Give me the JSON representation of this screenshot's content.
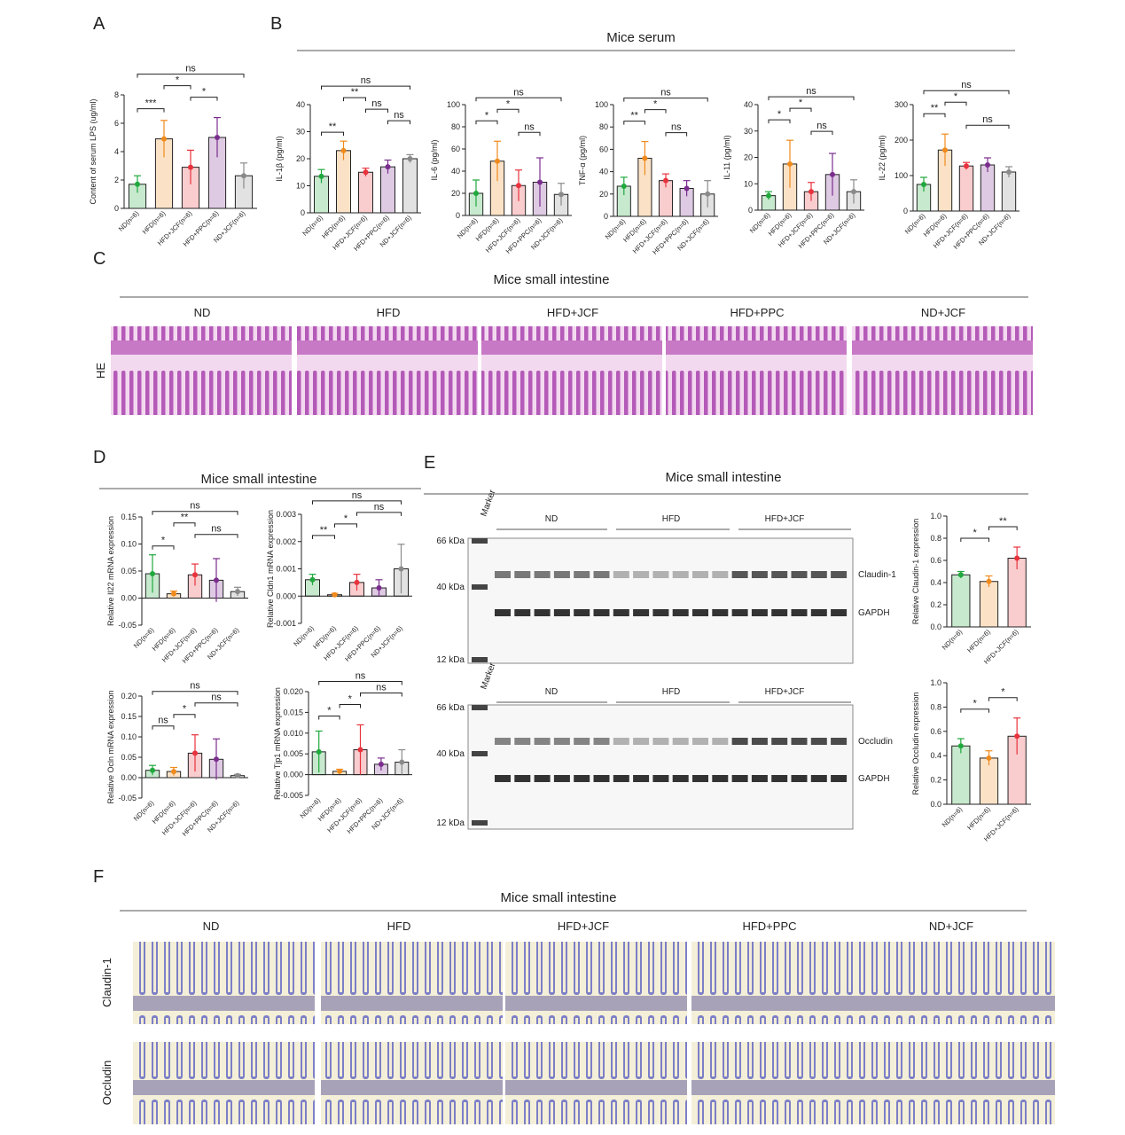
{
  "panel_letters": [
    "A",
    "B",
    "C",
    "D",
    "E",
    "F"
  ],
  "serum_title": "Mice serum",
  "he": {
    "title": "Mice small intestine",
    "row": "HE",
    "groups": [
      "ND",
      "HFD",
      "HFD+JCF",
      "HFD+PPC",
      "ND+JCF"
    ]
  },
  "d_title": "Mice small intestine",
  "e": {
    "title": "Mice small intestine",
    "blots": [
      {
        "marker": "Marker",
        "kda": [
          "66 kDa",
          "40 kDa",
          "12 kDa"
        ],
        "groups": [
          "ND",
          "HFD",
          "HFD+JCF"
        ],
        "bands": [
          "Claudin-1",
          "GAPDH"
        ]
      },
      {
        "marker": "Marker",
        "kda": [
          "66 kDa",
          "40 kDa",
          "12 kDa"
        ],
        "groups": [
          "ND",
          "HFD",
          "HFD+JCF"
        ],
        "bands": [
          "Occludin",
          "GAPDH"
        ]
      }
    ]
  },
  "f": {
    "title": "Mice small intestine",
    "groups": [
      "ND",
      "HFD",
      "HFD+JCF",
      "HFD+PPC",
      "ND+JCF"
    ],
    "rows": [
      "Claudin-1",
      "Occludin"
    ]
  },
  "chart_data": [
    {
      "type": "bar",
      "ylabel": "Content of serum LPS (ug/ml)",
      "categories": [
        "ND(n=6)",
        "HFD(n=6)",
        "HFD+JCF(n=6)",
        "HFD+PPC(n=6)",
        "ND+JCF(n=6)"
      ],
      "values": [
        1.7,
        4.9,
        2.9,
        5.0,
        2.3
      ],
      "errors": [
        0.6,
        1.3,
        1.2,
        1.4,
        0.9
      ],
      "colors": [
        "#1fa83c",
        "#f08a1c",
        "#e8323c",
        "#7b2d8e",
        "#8a8a8a"
      ],
      "ylim": [
        0,
        8
      ],
      "yticks": [
        0,
        2,
        4,
        6,
        8
      ],
      "annotations": [
        {
          "text": "***",
          "from": 0,
          "to": 1
        },
        {
          "text": "*",
          "from": 2,
          "to": 3
        },
        {
          "text": "*",
          "from": 1,
          "to": 2
        },
        {
          "text": "ns",
          "from": 0,
          "to": 4
        }
      ]
    },
    {
      "type": "bar",
      "ylabel": "IL-1β (pg/ml)",
      "categories": [
        "ND(n=6)",
        "HFD(n=6)",
        "HFD+JCF(n=6)",
        "HFD+PPC(n=6)",
        "ND+JCF(n=6)"
      ],
      "values": [
        13.5,
        23,
        15,
        17,
        20
      ],
      "errors": [
        2.5,
        3.5,
        1.5,
        2.5,
        1.5
      ],
      "colors": [
        "#1fa83c",
        "#f08a1c",
        "#e8323c",
        "#7b2d8e",
        "#8a8a8a"
      ],
      "ylim": [
        0,
        40
      ],
      "yticks": [
        0,
        10,
        20,
        30,
        40
      ],
      "annotations": [
        {
          "text": "**",
          "from": 0,
          "to": 1
        },
        {
          "text": "ns",
          "from": 3,
          "to": 4
        },
        {
          "text": "ns",
          "from": 2,
          "to": 3
        },
        {
          "text": "**",
          "from": 1,
          "to": 2
        },
        {
          "text": "ns",
          "from": 0,
          "to": 4
        }
      ]
    },
    {
      "type": "bar",
      "ylabel": "IL-6 (pg/ml)",
      "categories": [
        "ND(n=6)",
        "HFD(n=6)",
        "HFD+JCF(n=6)",
        "HFD+PPC(n=6)",
        "ND+JCF(n=6)"
      ],
      "values": [
        20,
        49,
        27,
        30,
        19
      ],
      "errors": [
        12,
        18,
        14,
        22,
        10
      ],
      "colors": [
        "#1fa83c",
        "#f08a1c",
        "#e8323c",
        "#7b2d8e",
        "#8a8a8a"
      ],
      "ylim": [
        0,
        100
      ],
      "yticks": [
        0,
        20,
        40,
        60,
        80,
        100
      ],
      "annotations": [
        {
          "text": "ns",
          "from": 2,
          "to": 3
        },
        {
          "text": "*",
          "from": 0,
          "to": 1
        },
        {
          "text": "*",
          "from": 1,
          "to": 2
        },
        {
          "text": "ns",
          "from": 0,
          "to": 4
        }
      ]
    },
    {
      "type": "bar",
      "ylabel": "TNF-α (pg/ml)",
      "categories": [
        "ND(n=6)",
        "HFD(n=6)",
        "HFD+JCF(n=6)",
        "HFD+PPC(n=6)",
        "ND+JCF(n=6)"
      ],
      "values": [
        27,
        52,
        32,
        25,
        20
      ],
      "errors": [
        8,
        15,
        6,
        7,
        12
      ],
      "colors": [
        "#1fa83c",
        "#f08a1c",
        "#e8323c",
        "#7b2d8e",
        "#8a8a8a"
      ],
      "ylim": [
        0,
        100
      ],
      "yticks": [
        0,
        20,
        40,
        60,
        80,
        100
      ],
      "annotations": [
        {
          "text": "ns",
          "from": 2,
          "to": 3
        },
        {
          "text": "**",
          "from": 0,
          "to": 1
        },
        {
          "text": "*",
          "from": 1,
          "to": 2
        },
        {
          "text": "ns",
          "from": 0,
          "to": 4
        }
      ]
    },
    {
      "type": "bar",
      "ylabel": "IL-11 (pg/ml)",
      "categories": [
        "ND(n=6)",
        "HFD(n=6)",
        "HFD+JCF(n=6)",
        "HFD+PPC(n=6)",
        "ND+JCF(n=6)"
      ],
      "values": [
        5.5,
        17.5,
        7,
        13.5,
        7
      ],
      "errors": [
        1.5,
        9,
        3.5,
        8,
        4.5
      ],
      "colors": [
        "#1fa83c",
        "#f08a1c",
        "#e8323c",
        "#7b2d8e",
        "#8a8a8a"
      ],
      "ylim": [
        0,
        40
      ],
      "yticks": [
        0,
        10,
        20,
        30,
        40
      ],
      "annotations": [
        {
          "text": "ns",
          "from": 2,
          "to": 3
        },
        {
          "text": "*",
          "from": 0,
          "to": 1
        },
        {
          "text": "*",
          "from": 1,
          "to": 2
        },
        {
          "text": "ns",
          "from": 0,
          "to": 4
        }
      ]
    },
    {
      "type": "bar",
      "ylabel": "IL-22 (pg/ml)",
      "categories": [
        "ND(n=6)",
        "HFD(n=6)",
        "HFD+JCF(n=6)",
        "HFD+PPC(n=6)",
        "ND+JCF(n=6)"
      ],
      "values": [
        75,
        172,
        127,
        130,
        110
      ],
      "errors": [
        20,
        45,
        10,
        20,
        15
      ],
      "colors": [
        "#1fa83c",
        "#f08a1c",
        "#e8323c",
        "#7b2d8e",
        "#8a8a8a"
      ],
      "ylim": [
        0,
        300
      ],
      "yticks": [
        0,
        100,
        200,
        300
      ],
      "annotations": [
        {
          "text": "ns",
          "from": 2,
          "to": 4
        },
        {
          "text": "**",
          "from": 0,
          "to": 1
        },
        {
          "text": "*",
          "from": 1,
          "to": 2
        },
        {
          "text": "ns",
          "from": 0,
          "to": 4
        }
      ]
    },
    {
      "type": "bar",
      "ylabel": "Relative Il22 mRNA expression",
      "categories": [
        "ND(n=6)",
        "HFD(n=6)",
        "HFD+JCF(n=6)",
        "HFD+PPC(n=6)",
        "ND+JCF(n=6)"
      ],
      "values": [
        0.045,
        0.008,
        0.043,
        0.033,
        0.012
      ],
      "errors": [
        0.035,
        0.005,
        0.02,
        0.04,
        0.008
      ],
      "colors": [
        "#1fa83c",
        "#f08a1c",
        "#e8323c",
        "#7b2d8e",
        "#8a8a8a"
      ],
      "ylim": [
        -0.05,
        0.15
      ],
      "yticks": [
        -0.05,
        {
          "value": 0,
          "label": "0.00"
        },
        0.05,
        {
          "value": 0.1,
          "label": "0.10"
        },
        0.15
      ],
      "annotations": [
        {
          "text": "*",
          "from": 0,
          "to": 1
        },
        {
          "text": "ns",
          "from": 2,
          "to": 4
        },
        {
          "text": "**",
          "from": 1,
          "to": 2
        },
        {
          "text": "ns",
          "from": 0,
          "to": 4
        }
      ]
    },
    {
      "type": "bar",
      "ylabel": "Relative Cldn1 mRNA expression",
      "categories": [
        "ND(n=6)",
        "HFD(n=6)",
        "HFD+JCF(n=6)",
        "HFD+PPC(n=6)",
        "ND+JCF(n=6)"
      ],
      "values": [
        0.0006,
        5e-05,
        0.0005,
        0.0003,
        0.001
      ],
      "errors": [
        0.0002,
        5e-05,
        0.0003,
        0.0003,
        0.0009
      ],
      "colors": [
        "#1fa83c",
        "#f08a1c",
        "#e8323c",
        "#7b2d8e",
        "#8a8a8a"
      ],
      "ylim": [
        -0.001,
        0.003
      ],
      "yticks": [
        -0.001,
        {
          "value": 0,
          "label": "0.000"
        },
        0.001,
        0.002,
        0.003
      ],
      "annotations": [
        {
          "text": "**",
          "from": 0,
          "to": 1
        },
        {
          "text": "*",
          "from": 1,
          "to": 2
        },
        {
          "text": "ns",
          "from": 2,
          "to": 4
        },
        {
          "text": "ns",
          "from": 0,
          "to": 4
        }
      ]
    },
    {
      "type": "bar",
      "ylabel": "Relative Ocln mRNA expression",
      "categories": [
        "ND(n=6)",
        "HFD(n=6)",
        "HFD+JCF(n=6)",
        "HFD+PPC(n=6)",
        "ND+JCF(n=6)"
      ],
      "values": [
        0.018,
        0.015,
        0.06,
        0.045,
        0.005
      ],
      "errors": [
        0.012,
        0.01,
        0.045,
        0.05,
        0.003
      ],
      "colors": [
        "#1fa83c",
        "#f08a1c",
        "#e8323c",
        "#7b2d8e",
        "#8a8a8a"
      ],
      "ylim": [
        -0.05,
        0.2
      ],
      "yticks": [
        -0.05,
        {
          "value": 0,
          "label": "0.00"
        },
        0.05,
        {
          "value": 0.1,
          "label": "0.10"
        },
        0.15,
        {
          "value": 0.2,
          "label": "0.20"
        }
      ],
      "annotations": [
        {
          "text": "ns",
          "from": 0,
          "to": 1
        },
        {
          "text": "*",
          "from": 1,
          "to": 2
        },
        {
          "text": "ns",
          "from": 2,
          "to": 4
        },
        {
          "text": "ns",
          "from": 0,
          "to": 4
        }
      ]
    },
    {
      "type": "bar",
      "ylabel": "Relative Tjp1 mRNA expression",
      "categories": [
        "ND(n=6)",
        "HFD(n=6)",
        "HFD+JCF(n=6)",
        "HFD+PPC(n=6)",
        "ND+JCF(n=6)"
      ],
      "values": [
        0.0055,
        0.0008,
        0.006,
        0.0025,
        0.003
      ],
      "errors": [
        0.005,
        0.0005,
        0.006,
        0.0015,
        0.003
      ],
      "colors": [
        "#1fa83c",
        "#f08a1c",
        "#e8323c",
        "#7b2d8e",
        "#8a8a8a"
      ],
      "ylim": [
        -0.005,
        0.02
      ],
      "yticks": [
        -0.005,
        {
          "value": 0,
          "label": "0.000"
        },
        0.005,
        {
          "value": 0.01,
          "label": "0.010"
        },
        0.015,
        {
          "value": 0.02,
          "label": "0.020"
        }
      ],
      "annotations": [
        {
          "text": "*",
          "from": 0,
          "to": 1
        },
        {
          "text": "*",
          "from": 1,
          "to": 2
        },
        {
          "text": "ns",
          "from": 2,
          "to": 4
        },
        {
          "text": "ns",
          "from": 0,
          "to": 4
        }
      ]
    },
    {
      "type": "bar",
      "ylabel": "Relative Claudin-1 expression",
      "categories": [
        "ND(n=6)",
        "HFD(n=6)",
        "HFD+JCF(n=6)"
      ],
      "values": [
        0.47,
        0.41,
        0.62
      ],
      "errors": [
        0.03,
        0.05,
        0.1
      ],
      "colors": [
        "#1fa83c",
        "#f08a1c",
        "#e8323c"
      ],
      "ylim": [
        0,
        1
      ],
      "yticks": [
        {
          "value": 0,
          "label": "0.0"
        },
        0.2,
        0.4,
        0.6,
        0.8,
        {
          "value": 1,
          "label": "1.0"
        }
      ],
      "annotations": [
        {
          "text": "*",
          "from": 0,
          "to": 1
        },
        {
          "text": "**",
          "from": 1,
          "to": 2
        }
      ]
    },
    {
      "type": "bar",
      "ylabel": "Relative Occludin expression",
      "categories": [
        "ND(n=6)",
        "HFD(n=6)",
        "HFD+JCF(n=6)"
      ],
      "values": [
        0.48,
        0.38,
        0.56
      ],
      "errors": [
        0.06,
        0.06,
        0.15
      ],
      "colors": [
        "#1fa83c",
        "#f08a1c",
        "#e8323c"
      ],
      "ylim": [
        0,
        1
      ],
      "yticks": [
        {
          "value": 0,
          "label": "0.0"
        },
        0.2,
        0.4,
        0.6,
        0.8,
        {
          "value": 1,
          "label": "1.0"
        }
      ],
      "annotations": [
        {
          "text": "*",
          "from": 0,
          "to": 1
        },
        {
          "text": "*",
          "from": 1,
          "to": 2
        }
      ]
    }
  ]
}
